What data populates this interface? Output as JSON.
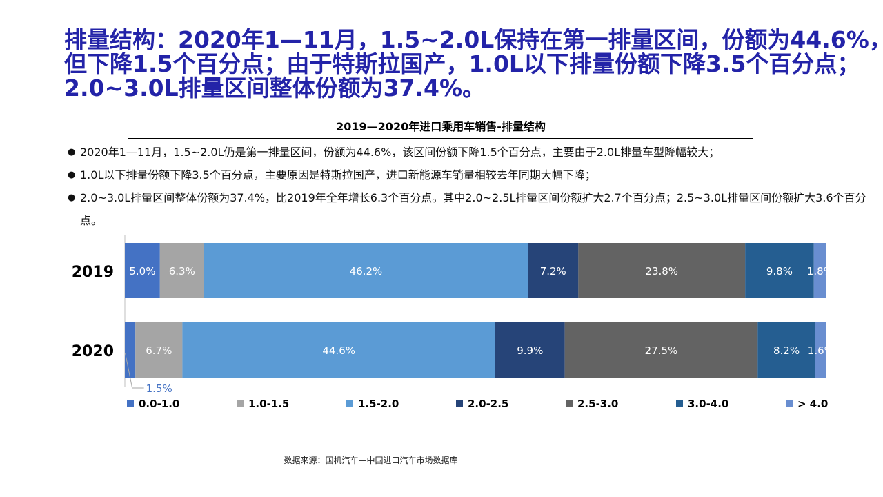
{
  "headline": [
    "排量结构：2020年1—11月，1.5~2.0L保持在第一排量区间，份额为44.6%，",
    "但下降1.5个百分点；由于特斯拉国产，1.0L以下排量份额下降3.5个百分点；",
    "2.0~3.0L排量区间整体份额为37.4%。"
  ],
  "subtitle": "2019—2020年进口乘用车销售-排量结构",
  "bullets": [
    "2020年1—11月，1.5~2.0L仍是第一排量区间，份额为44.6%，该区间份额下降1.5个百分点，主要由于2.0L排量车型降幅较大；",
    "1.0L以下排量份额下降3.5个百分点，主要原因是特斯拉国产，进口新能源车销量相较去年同期大幅下降；",
    "2.0~3.0L排量区间整体份额为37.4%，比2019年全年增长6.3个百分点。其中2.0~2.5L排量区间份额扩大2.7个百分点；2.5~3.0L排量区间份额扩大3.6个百分点。"
  ],
  "source": "数据来源：国机汽车—中国进口汽车市场数据库",
  "chart_data": {
    "type": "bar",
    "orientation": "horizontal",
    "stacked": "percent",
    "categories": [
      "2019",
      "2020"
    ],
    "series": [
      {
        "name": "0.0-1.0",
        "color": "#4472C4",
        "values": [
          5.0,
          1.5
        ],
        "labels": [
          "5.0%",
          "1.5%"
        ]
      },
      {
        "name": "1.0-1.5",
        "color": "#A5A5A5",
        "values": [
          6.3,
          6.7
        ],
        "labels": [
          "6.3%",
          "6.7%"
        ]
      },
      {
        "name": "1.5-2.0",
        "color": "#5B9BD5",
        "values": [
          46.2,
          44.6
        ],
        "labels": [
          "46.2%",
          "44.6%"
        ]
      },
      {
        "name": "2.0-2.5",
        "color": "#264478",
        "values": [
          7.2,
          9.9
        ],
        "labels": [
          "7.2%",
          "9.9%"
        ]
      },
      {
        "name": "2.5-3.0",
        "color": "#636363",
        "values": [
          23.8,
          27.5
        ],
        "labels": [
          "23.8%",
          "27.5%"
        ]
      },
      {
        "name": "3.0-4.0",
        "color": "#255E91",
        "values": [
          9.8,
          8.2
        ],
        "labels": [
          "9.8%",
          "8.2%"
        ]
      },
      {
        "name": "> 4.0",
        "color": "#698ED0",
        "values": [
          1.8,
          1.6
        ],
        "labels": [
          "1.8%",
          "1.6%"
        ]
      }
    ],
    "callout": {
      "category": "2020",
      "series": "0.0-1.0",
      "label": "1.5%",
      "color": "#4472C4"
    },
    "legend": "bottom",
    "grid": false
  }
}
